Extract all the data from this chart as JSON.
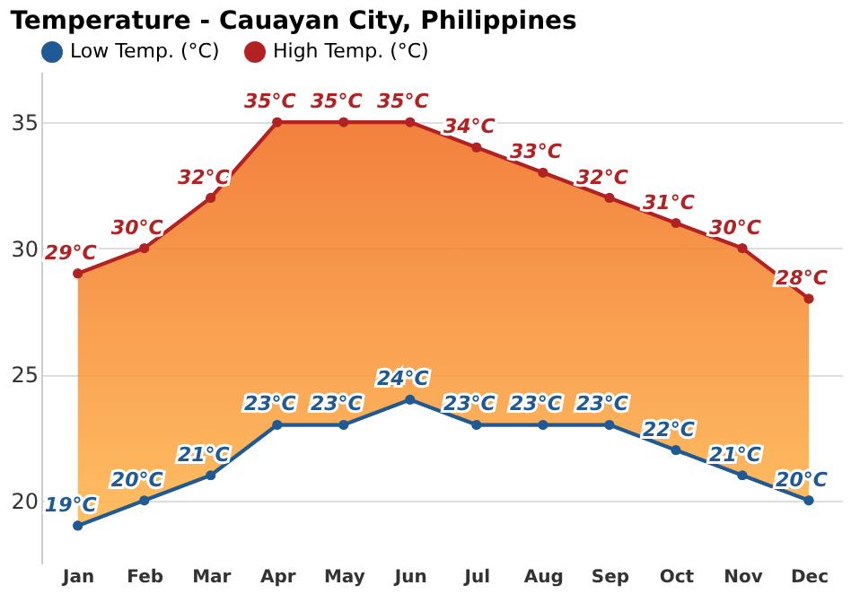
{
  "chart_data": {
    "type": "line",
    "title": "Temperature - Cauayan City, Philippines",
    "categories": [
      "Jan",
      "Feb",
      "Mar",
      "Apr",
      "May",
      "Jun",
      "Jul",
      "Aug",
      "Sep",
      "Oct",
      "Nov",
      "Dec"
    ],
    "series": [
      {
        "name": "Low Temp. (°C)",
        "color": "#1f5a96",
        "values": [
          19,
          20,
          21,
          23,
          23,
          24,
          23,
          23,
          23,
          22,
          21,
          20
        ],
        "value_labels": [
          "19°C",
          "20°C",
          "21°C",
          "23°C",
          "23°C",
          "24°C",
          "23°C",
          "23°C",
          "23°C",
          "22°C",
          "21°C",
          "20°C"
        ]
      },
      {
        "name": "High Temp. (°C)",
        "color": "#b22222",
        "values": [
          29,
          30,
          32,
          35,
          35,
          35,
          34,
          33,
          32,
          31,
          30,
          28
        ],
        "value_labels": [
          "29°C",
          "30°C",
          "32°C",
          "35°C",
          "35°C",
          "35°C",
          "34°C",
          "33°C",
          "32°C",
          "31°C",
          "30°C",
          "28°C"
        ]
      }
    ],
    "ylim": [
      17.5,
      37
    ],
    "yticks": [
      20,
      25,
      30,
      35
    ],
    "grid": "y",
    "legend": "top left",
    "marker": "circle",
    "line_style": "solid"
  }
}
